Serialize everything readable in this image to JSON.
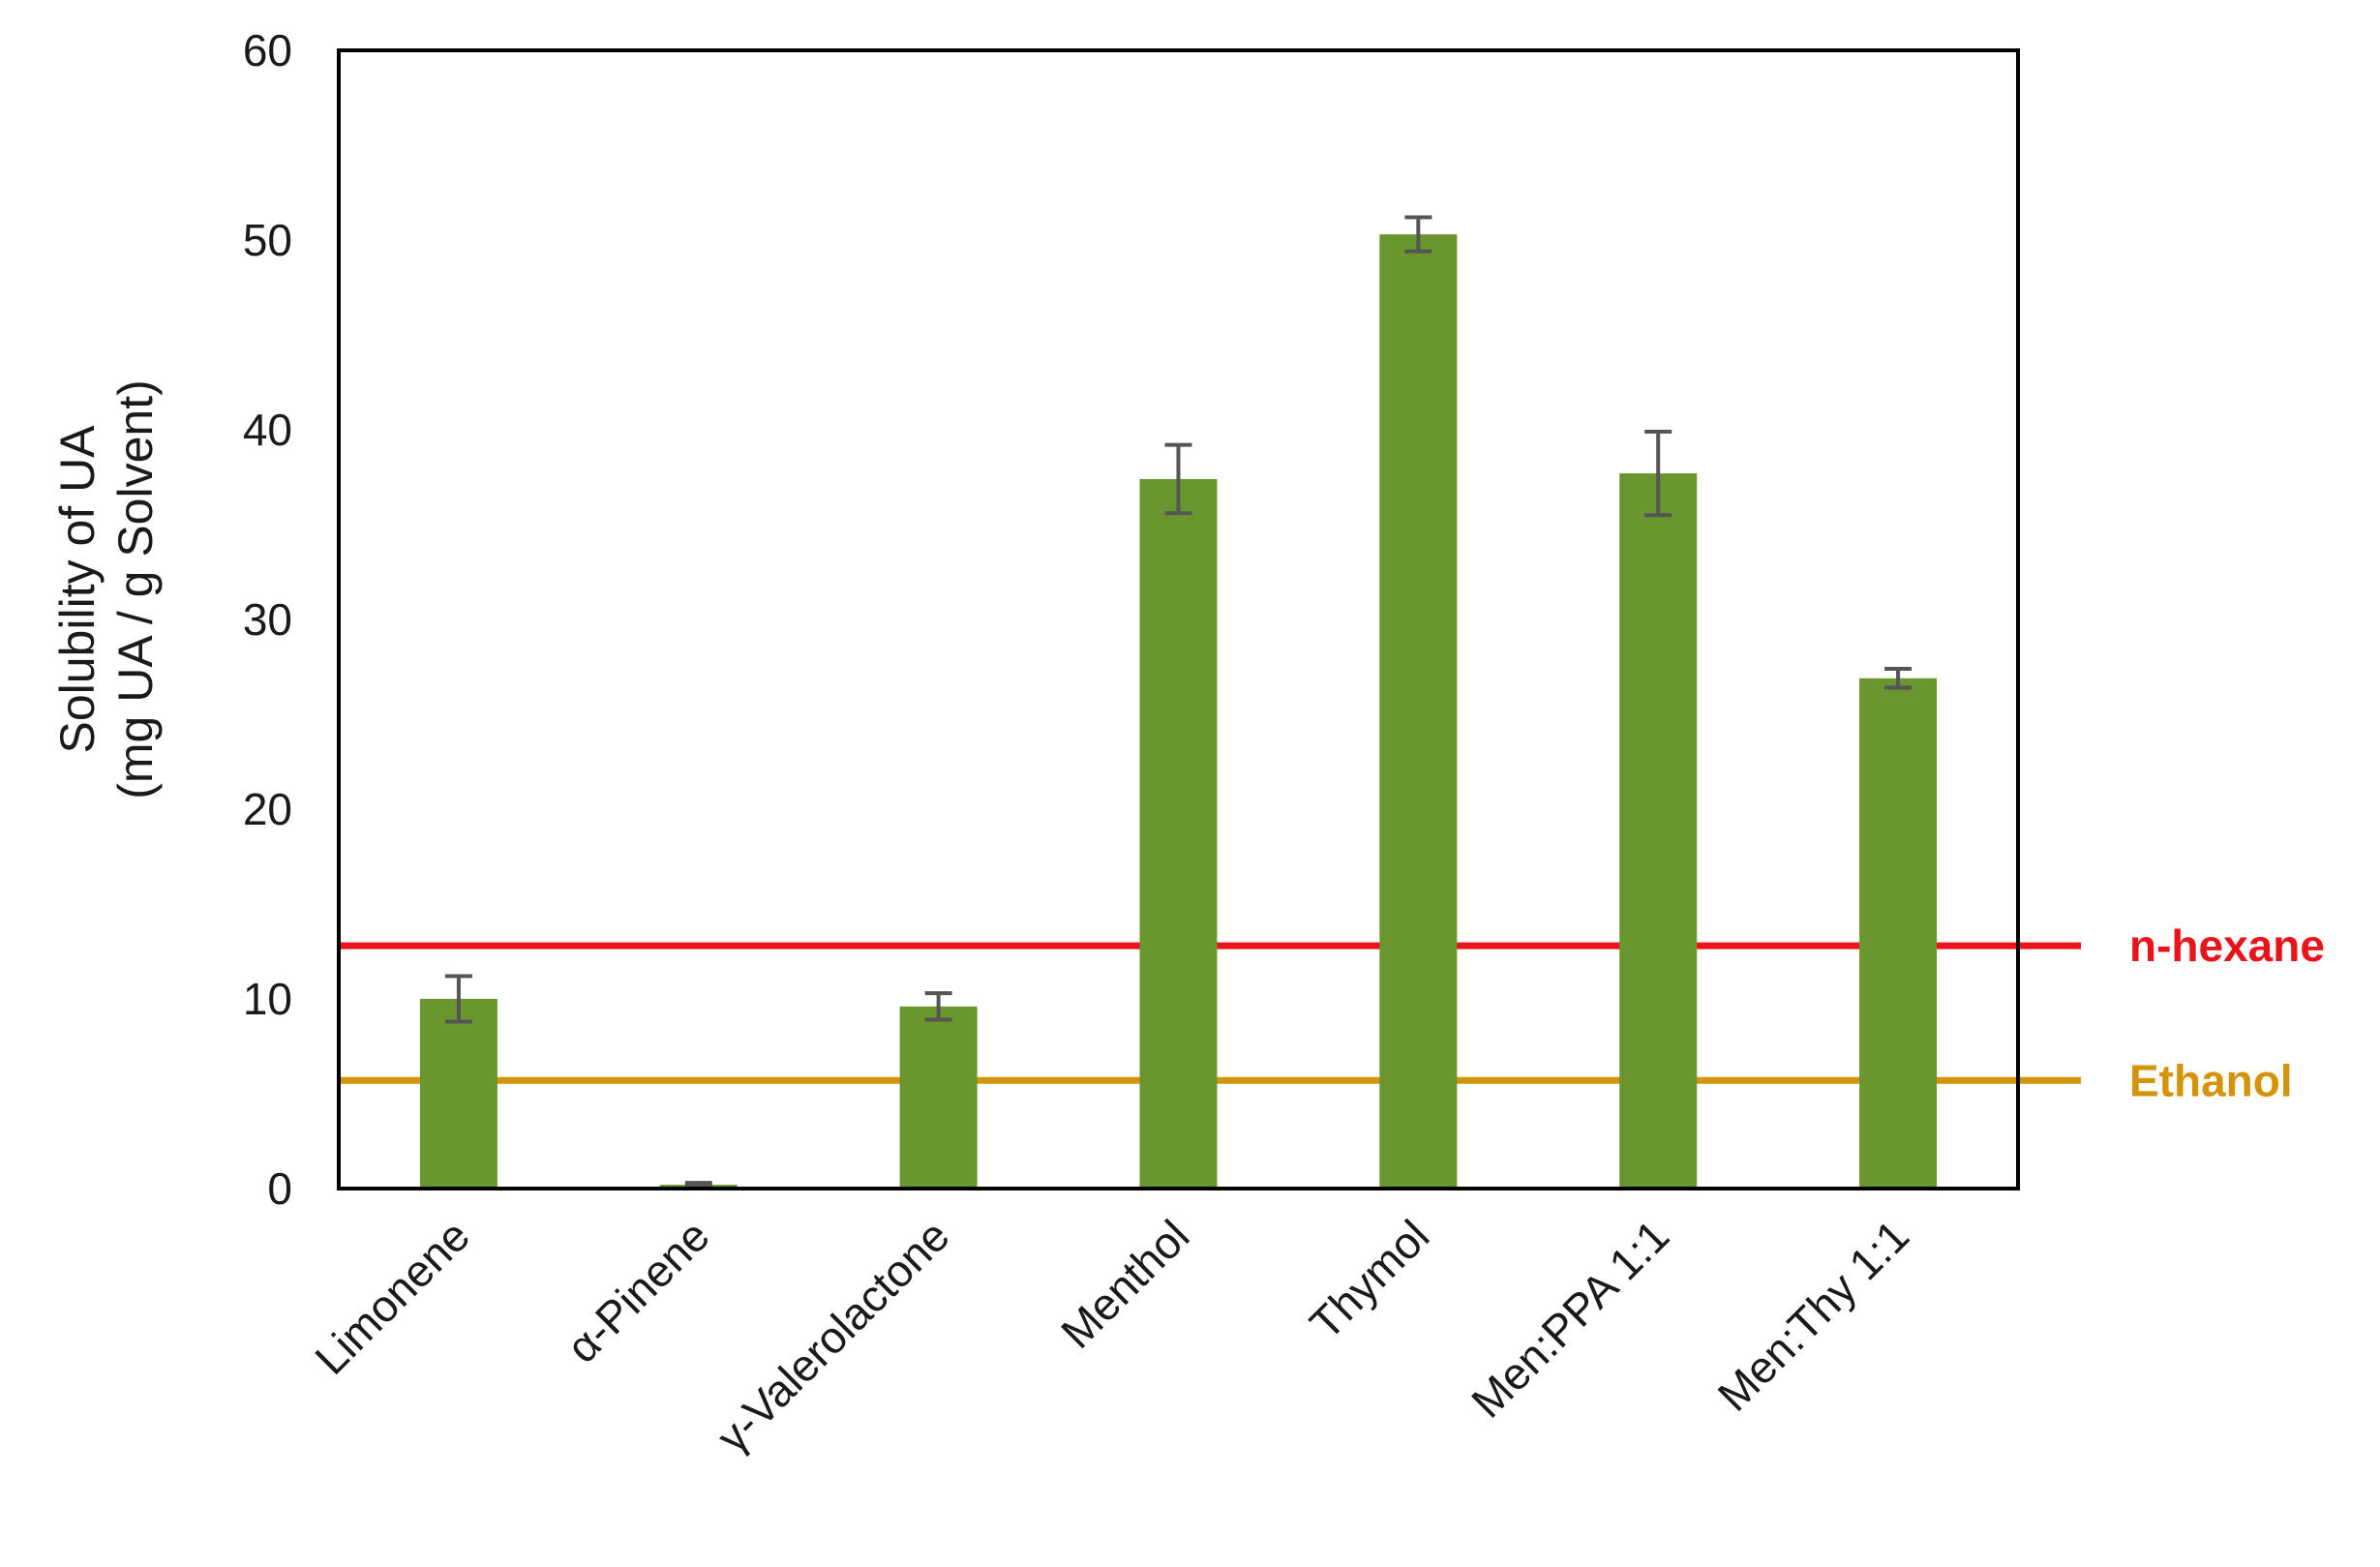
{
  "chart_data": {
    "type": "bar",
    "title": "",
    "xlabel": "",
    "ylabel_lines": [
      "Solubility of UA",
      "(mg UA / g Solvent)"
    ],
    "ylim": [
      0,
      60
    ],
    "yticks": [
      0,
      10,
      20,
      30,
      40,
      50,
      60
    ],
    "grid": false,
    "bar_color": "#6a962f",
    "errorbar_color": "#555555",
    "categories": [
      "Limonene",
      "α-Pinene",
      "γ-Valerolactone",
      "Menthol",
      "Thymol",
      "Men:PPA 1:1",
      "Men:Thy 1:1"
    ],
    "values": [
      10.0,
      0.2,
      9.6,
      37.4,
      50.3,
      37.7,
      26.9
    ],
    "errors": [
      1.2,
      0.1,
      0.7,
      1.8,
      0.9,
      2.2,
      0.5
    ],
    "reference_lines": [
      {
        "label": "n-hexane",
        "value": 12.8,
        "color": "#e8141a"
      },
      {
        "label": "Ethanol",
        "value": 5.7,
        "color": "#d4940a"
      }
    ]
  }
}
